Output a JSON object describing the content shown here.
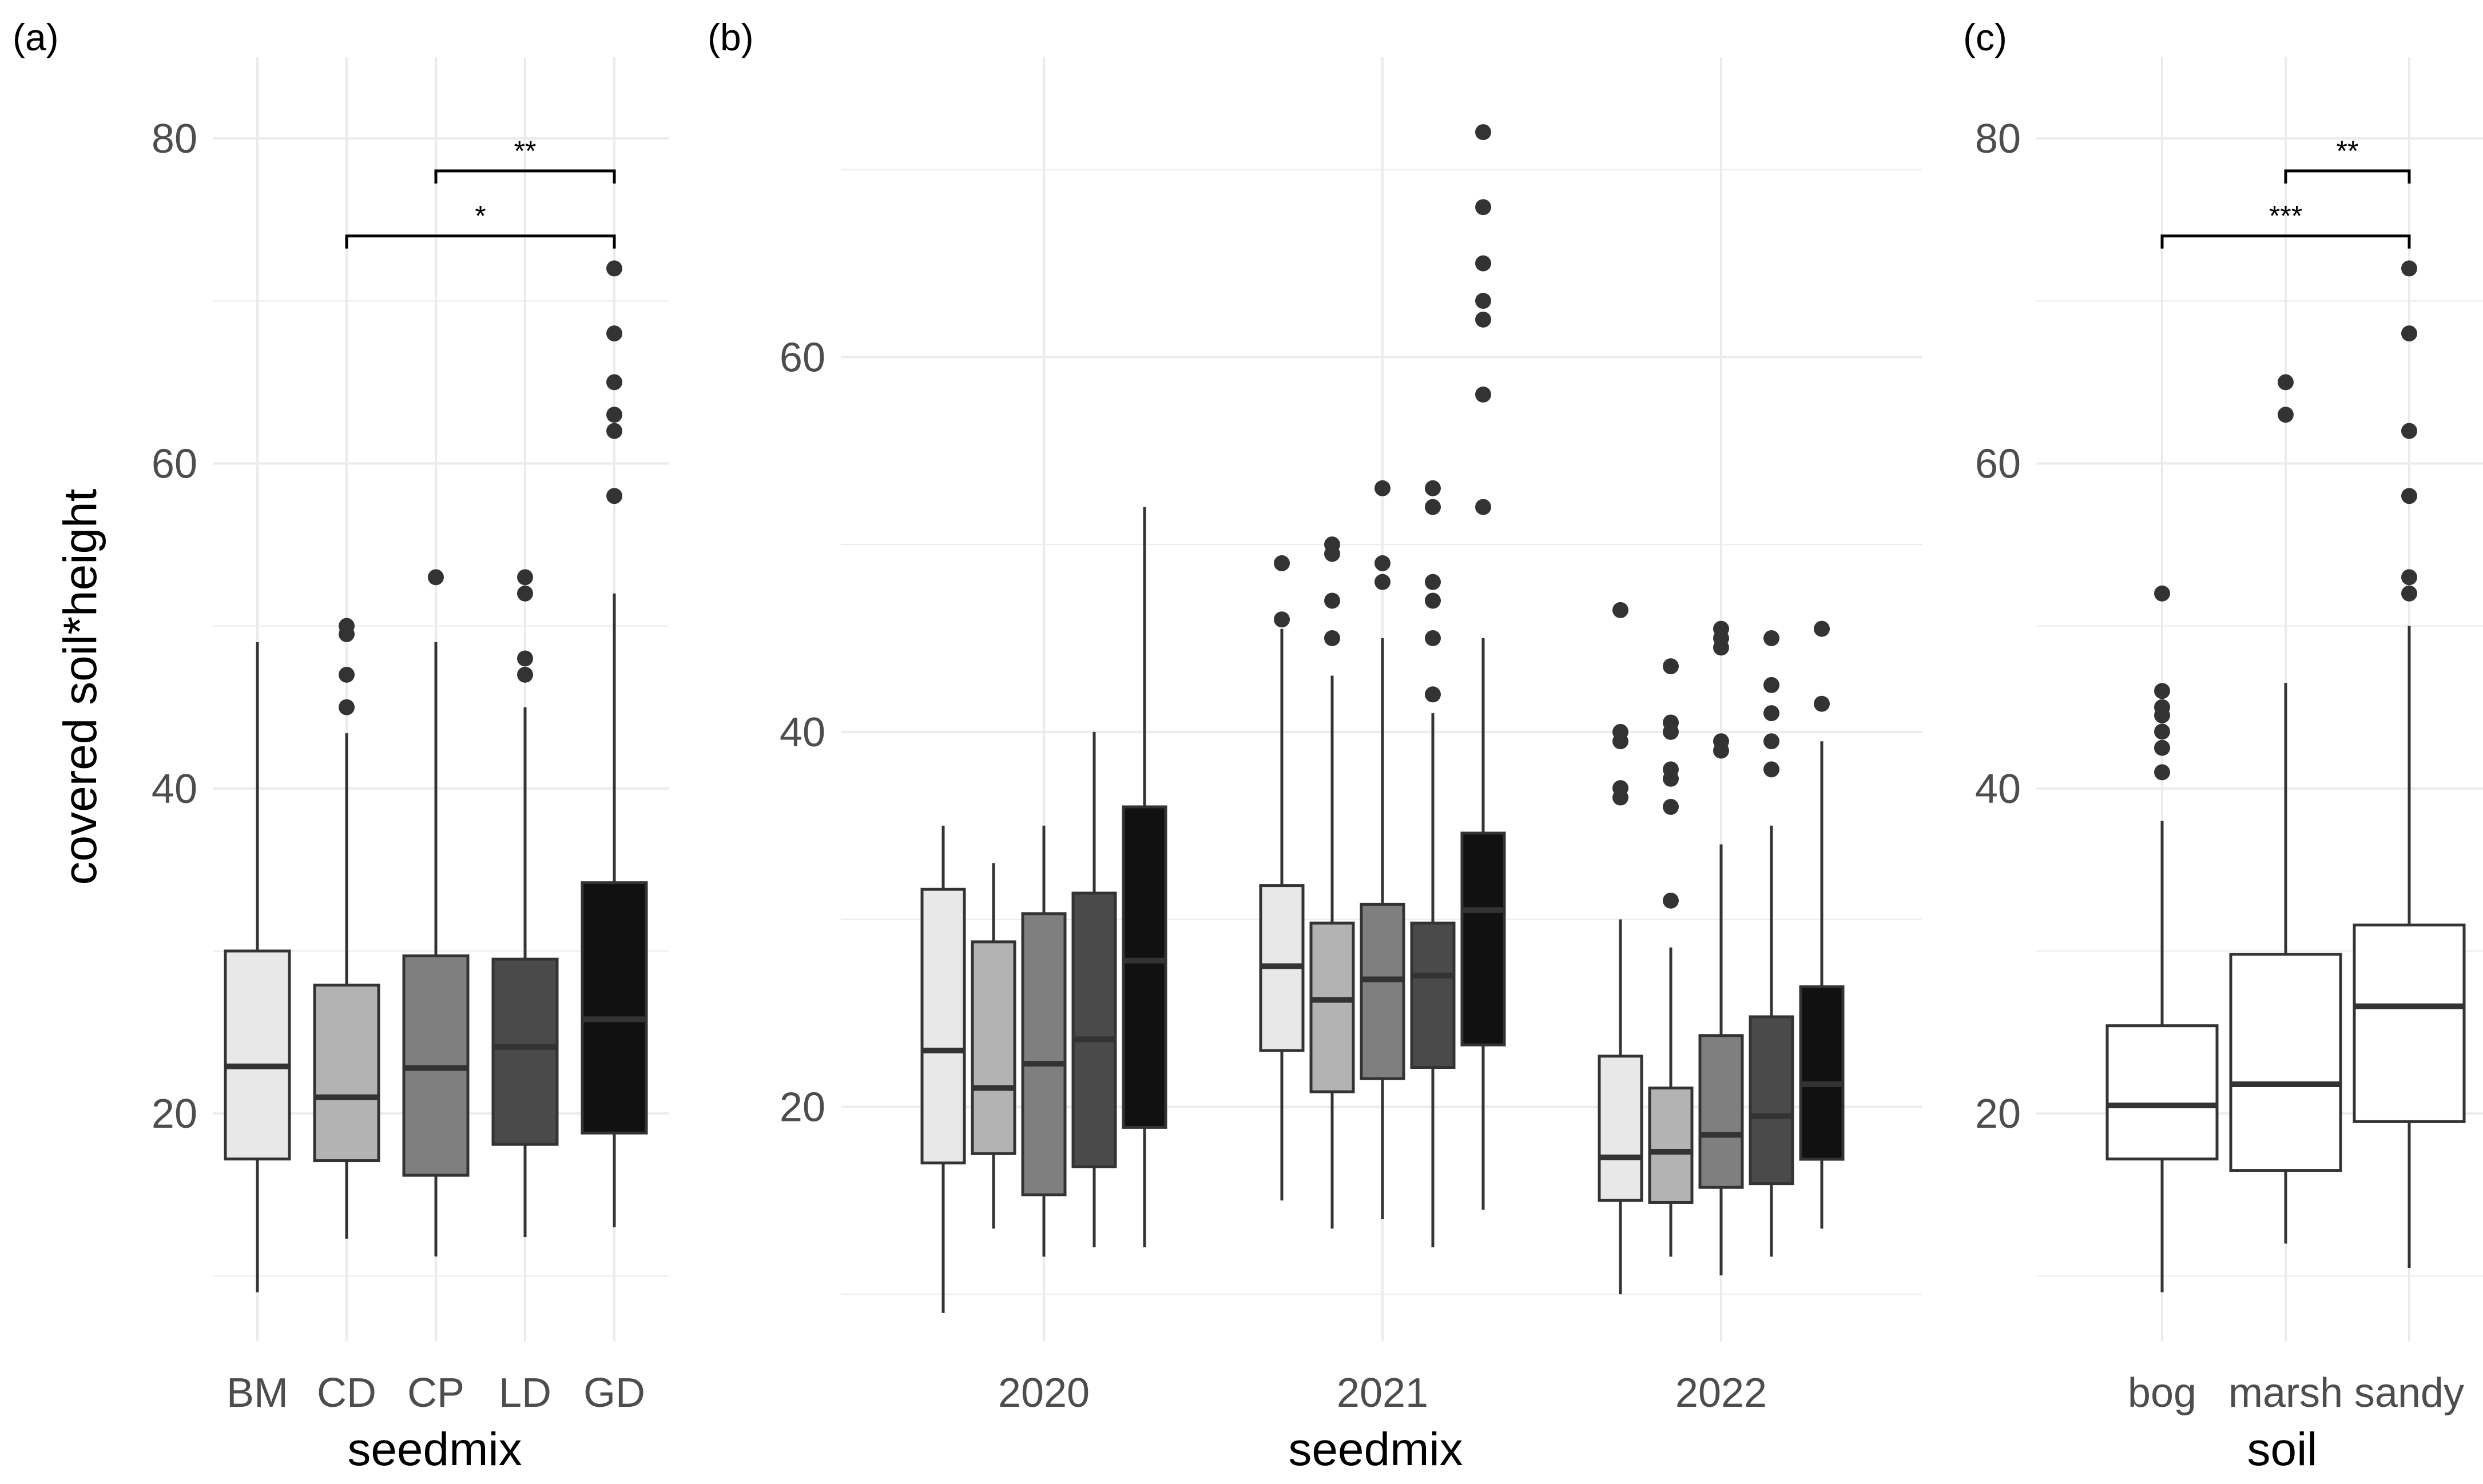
{
  "figure": {
    "panel_labels": [
      "(a)",
      "(b)",
      "(c)"
    ],
    "shared_ylabel": "covered soil*height"
  },
  "colors": {
    "background": "#ffffff",
    "grid": "#ebebeb",
    "box_stroke": "#333333",
    "fills": {
      "BM": "#e8e8e8",
      "CD": "#b3b3b3",
      "CP": "#7f7f7f",
      "LD": "#4a4a4a",
      "GD": "#111111",
      "soil": "#ffffff"
    }
  },
  "chart_data": [
    {
      "type": "box",
      "panel": "(a)",
      "title": "",
      "xlabel": "seedmix",
      "ylabel": "covered soil*height",
      "ylim": [
        6,
        85
      ],
      "y_ticks": [
        20,
        40,
        60,
        80
      ],
      "grid": true,
      "categories": [
        "BM",
        "CD",
        "CP",
        "LD",
        "GD"
      ],
      "boxes": [
        {
          "category": "BM",
          "fill": "BM",
          "whisker_low": 9,
          "q1": 17.2,
          "median": 22.9,
          "q3": 30,
          "whisker_high": 49,
          "outliers": []
        },
        {
          "category": "CD",
          "fill": "CD",
          "whisker_low": 12.3,
          "q1": 17.1,
          "median": 21,
          "q3": 27.9,
          "whisker_high": 43.4,
          "outliers": [
            45,
            47,
            49.5,
            50
          ]
        },
        {
          "category": "CP",
          "fill": "CP",
          "whisker_low": 11.2,
          "q1": 16.2,
          "median": 22.8,
          "q3": 29.7,
          "whisker_high": 49,
          "outliers": [
            53
          ]
        },
        {
          "category": "LD",
          "fill": "LD",
          "whisker_low": 12.4,
          "q1": 18.1,
          "median": 24.1,
          "q3": 29.5,
          "whisker_high": 45,
          "outliers": [
            47,
            48,
            52,
            53
          ]
        },
        {
          "category": "GD",
          "fill": "GD",
          "whisker_low": 13,
          "q1": 18.8,
          "median": 25.8,
          "q3": 34.2,
          "whisker_high": 52,
          "outliers": [
            58,
            62,
            63,
            65,
            68,
            72
          ]
        }
      ],
      "annotations": [
        {
          "from": "CD",
          "to": "GD",
          "y": 74,
          "label": "*"
        },
        {
          "from": "CP",
          "to": "GD",
          "y": 78,
          "label": "**"
        }
      ]
    },
    {
      "type": "box",
      "panel": "(b)",
      "title": "",
      "xlabel": "seedmix",
      "ylabel": "",
      "ylim": [
        7.5,
        76
      ],
      "y_ticks": [
        20,
        40,
        60
      ],
      "grid": true,
      "categories": [
        "2020",
        "2021",
        "2022"
      ],
      "dodge_order": [
        "BM",
        "CD",
        "CP",
        "LD",
        "GD"
      ],
      "groups": [
        {
          "category": "2020",
          "boxes": [
            {
              "fill": "BM",
              "whisker_low": 9,
              "q1": 17,
              "median": 23,
              "q3": 31.6,
              "whisker_high": 35,
              "outliers": []
            },
            {
              "fill": "CD",
              "whisker_low": 13.5,
              "q1": 17.5,
              "median": 21,
              "q3": 28.8,
              "whisker_high": 33,
              "outliers": []
            },
            {
              "fill": "CP",
              "whisker_low": 12,
              "q1": 15.3,
              "median": 22.3,
              "q3": 30.3,
              "whisker_high": 35,
              "outliers": []
            },
            {
              "fill": "LD",
              "whisker_low": 12.5,
              "q1": 16.8,
              "median": 23.6,
              "q3": 31.4,
              "whisker_high": 40,
              "outliers": []
            },
            {
              "fill": "GD",
              "whisker_low": 12.5,
              "q1": 18.9,
              "median": 27.8,
              "q3": 36,
              "whisker_high": 52,
              "outliers": []
            }
          ]
        },
        {
          "category": "2021",
          "boxes": [
            {
              "fill": "BM",
              "whisker_low": 15,
              "q1": 23,
              "median": 27.5,
              "q3": 31.8,
              "whisker_high": 45.5,
              "outliers": [
                46,
                49
              ]
            },
            {
              "fill": "CD",
              "whisker_low": 13.5,
              "q1": 20.8,
              "median": 25.7,
              "q3": 29.8,
              "whisker_high": 43,
              "outliers": [
                45,
                47,
                49.5,
                50
              ]
            },
            {
              "fill": "CP",
              "whisker_low": 14,
              "q1": 21.5,
              "median": 26.8,
              "q3": 30.8,
              "whisker_high": 45,
              "outliers": [
                48,
                49,
                53
              ]
            },
            {
              "fill": "LD",
              "whisker_low": 12.5,
              "q1": 22.1,
              "median": 27,
              "q3": 29.8,
              "whisker_high": 41,
              "outliers": [
                42,
                45,
                47,
                48,
                52,
                53
              ]
            },
            {
              "fill": "GD",
              "whisker_low": 14.5,
              "q1": 23.3,
              "median": 30.5,
              "q3": 34.6,
              "whisker_high": 45,
              "outliers": [
                52,
                58,
                62,
                63,
                65,
                68,
                72
              ]
            }
          ]
        },
        {
          "category": "2022",
          "boxes": [
            {
              "fill": "BM",
              "whisker_low": 10,
              "q1": 15,
              "median": 17.3,
              "q3": 22.7,
              "whisker_high": 30,
              "outliers": [
                36.5,
                37,
                39.5,
                40,
                46.5
              ]
            },
            {
              "fill": "CD",
              "whisker_low": 12,
              "q1": 14.9,
              "median": 17.6,
              "q3": 21,
              "whisker_high": 28.5,
              "outliers": [
                31,
                36,
                37.5,
                38,
                40,
                40.5,
                43.5
              ]
            },
            {
              "fill": "CP",
              "whisker_low": 11,
              "q1": 15.7,
              "median": 18.5,
              "q3": 23.8,
              "whisker_high": 34,
              "outliers": [
                39,
                39.5,
                44.5,
                45,
                45.5
              ]
            },
            {
              "fill": "LD",
              "whisker_low": 12,
              "q1": 15.9,
              "median": 19.5,
              "q3": 24.8,
              "whisker_high": 35,
              "outliers": [
                38,
                39.5,
                41,
                42.5,
                45
              ]
            },
            {
              "fill": "GD",
              "whisker_low": 13.5,
              "q1": 17.2,
              "median": 21.2,
              "q3": 26.4,
              "whisker_high": 39.5,
              "outliers": [
                41.5,
                45.5
              ]
            }
          ]
        }
      ]
    },
    {
      "type": "box",
      "panel": "(c)",
      "title": "",
      "xlabel": "soil",
      "ylabel": "",
      "ylim": [
        6,
        85
      ],
      "y_ticks": [
        20,
        40,
        60,
        80
      ],
      "grid": true,
      "categories": [
        "bog",
        "marsh",
        "sandy"
      ],
      "boxes": [
        {
          "category": "bog",
          "fill": "soil",
          "whisker_low": 9,
          "q1": 17.2,
          "median": 20.5,
          "q3": 25.4,
          "whisker_high": 38,
          "outliers": [
            41,
            42.5,
            43.5,
            44.5,
            45,
            46,
            52
          ]
        },
        {
          "category": "marsh",
          "fill": "soil",
          "whisker_low": 12,
          "q1": 16.5,
          "median": 21.8,
          "q3": 29.8,
          "whisker_high": 46.5,
          "outliers": [
            63,
            65
          ]
        },
        {
          "category": "sandy",
          "fill": "soil",
          "whisker_low": 10.5,
          "q1": 19.5,
          "median": 26.6,
          "q3": 31.6,
          "whisker_high": 50,
          "outliers": [
            52,
            53,
            58,
            62,
            68,
            72
          ]
        }
      ],
      "annotations": [
        {
          "from": "bog",
          "to": "sandy",
          "y": 74,
          "label": "***"
        },
        {
          "from": "marsh",
          "to": "sandy",
          "y": 78,
          "label": "**"
        }
      ]
    }
  ]
}
